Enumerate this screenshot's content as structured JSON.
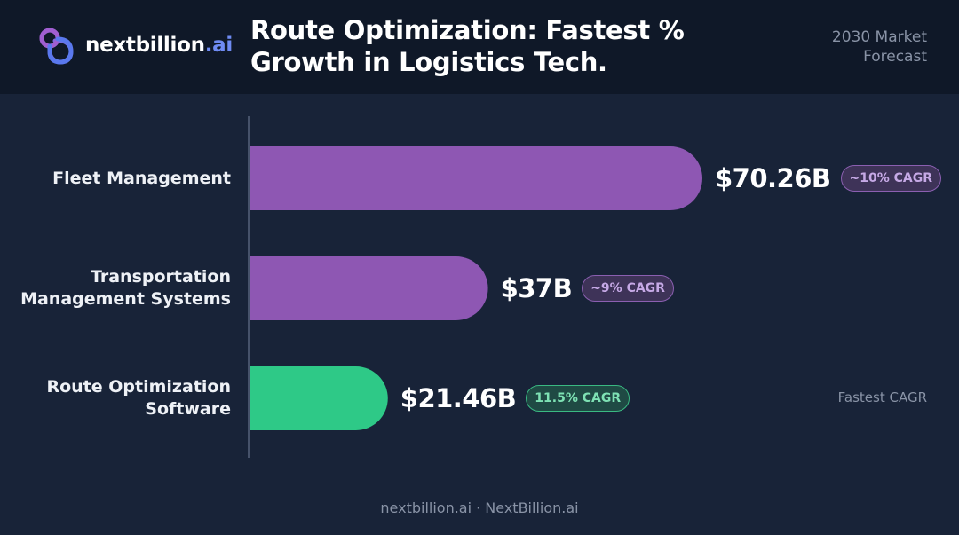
{
  "brand": {
    "name": "nextbillion",
    "tld": ".ai"
  },
  "title": {
    "line1": "Route Optimization: Fastest %",
    "line2": "Growth in Logistics Tech."
  },
  "forecast": {
    "line1": "2030 Market",
    "line2": "Forecast"
  },
  "footer": "nextbillion.ai · NextBillion.ai",
  "colors": {
    "purple": "#8e57b3",
    "green": "#2ec987",
    "background": "#182338",
    "header": "#0f1828"
  },
  "chart_data": {
    "type": "bar",
    "orientation": "horizontal",
    "unit": "$B",
    "title": "Route Optimization: Fastest % Growth in Logistics Tech.",
    "categories": [
      {
        "lines": [
          "Fleet Management"
        ],
        "value": 70.26,
        "value_label": "$70.26B",
        "cagr_label": "~10% CAGR",
        "color": "#8e57b3",
        "badge": "purple",
        "note": ""
      },
      {
        "lines": [
          "Transportation",
          "Management Systems"
        ],
        "value": 37,
        "value_label": "$37B",
        "cagr_label": "~9% CAGR",
        "color": "#8e57b3",
        "badge": "purple",
        "note": ""
      },
      {
        "lines": [
          "Route Optimization",
          "Software"
        ],
        "value": 21.46,
        "value_label": "$21.46B",
        "cagr_label": "11.5% CAGR",
        "color": "#2ec987",
        "badge": "green",
        "note": "Fastest CAGR"
      }
    ]
  }
}
